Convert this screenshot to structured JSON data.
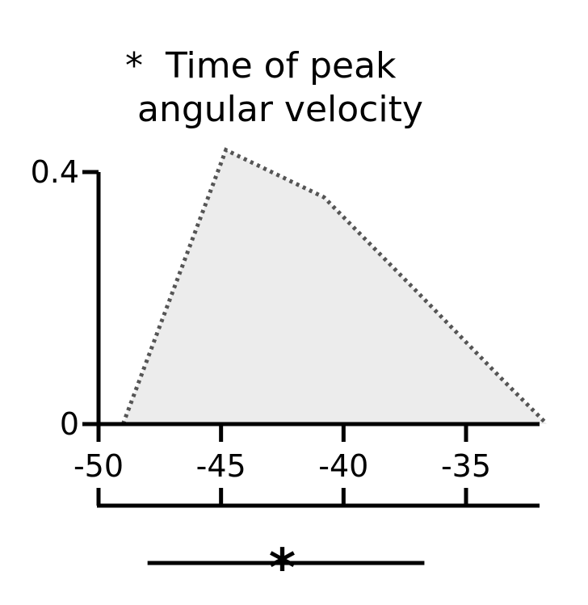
{
  "chart_data": {
    "type": "area",
    "title_marker": "*",
    "title_lines": [
      "Time of peak",
      "angular velocity"
    ],
    "xlabel": "",
    "ylabel": "",
    "x": [
      -49,
      -44.8,
      -40.8,
      -37,
      -33.5,
      -31.7
    ],
    "y": [
      0,
      0.435,
      0.36,
      0.21,
      0.07,
      0
    ],
    "xlim": [
      -50,
      -32
    ],
    "ylim": [
      0,
      0.4
    ],
    "x_ticks": [
      -50,
      -45,
      -40,
      -35
    ],
    "x_tick_labels": [
      "-50",
      "-45",
      "-40",
      "-35"
    ],
    "y_ticks": [
      0,
      0.4
    ],
    "y_tick_labels": [
      "0",
      "0.4"
    ],
    "line_style": "dotted",
    "fill_color": "#ececec",
    "line_color": "#555555",
    "grid": false,
    "summary": {
      "marker": "*",
      "peak_x": -42.5,
      "range_min": -48,
      "range_max": -36.7
    }
  }
}
